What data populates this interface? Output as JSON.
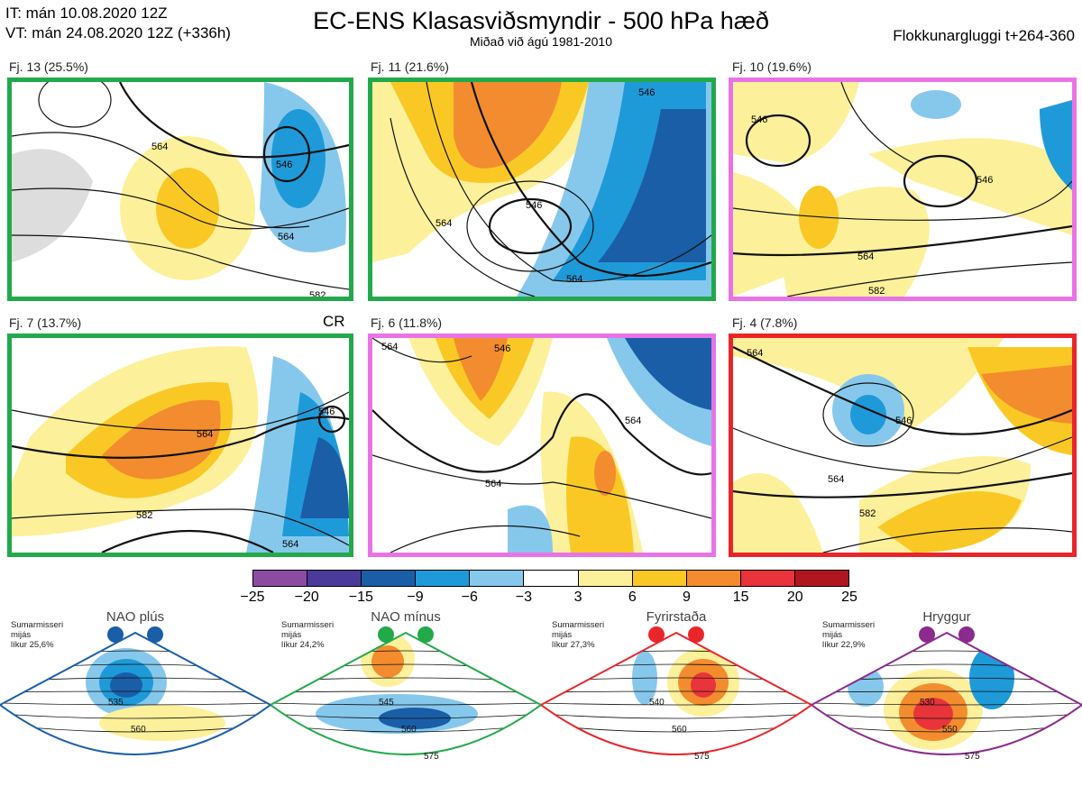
{
  "header": {
    "it": "IT: mán 10.08.2020 12Z",
    "vt": "VT: mán 24.08.2020 12Z  (+336h)",
    "title": "EC-ENS Klasasviðsmyndir - 500 hPa hæð",
    "subtitle": "Miðað við ágú 1981-2010",
    "window": "Flokkunargluggi t+264-360"
  },
  "panels": [
    {
      "label": "Fj. 13 (25.5%)",
      "border": "#22a94a",
      "contours": [
        "546",
        "564",
        "564",
        "582"
      ],
      "extra": ""
    },
    {
      "label": "Fj. 11 (21.6%)",
      "border": "#22a94a",
      "contours": [
        "546",
        "546",
        "564",
        "564"
      ],
      "extra": ""
    },
    {
      "label": "Fj. 10 (19.6%)",
      "border": "#e873e6",
      "contours": [
        "546",
        "546",
        "564",
        "582"
      ],
      "extra": ""
    },
    {
      "label": "Fj. 7 (13.7%)",
      "border": "#22a94a",
      "contours": [
        "546",
        "564",
        "582",
        "564"
      ],
      "extra": "CR"
    },
    {
      "label": "Fj. 6 (11.8%)",
      "border": "#e873e6",
      "contours": [
        "564",
        "546",
        "564",
        "564"
      ],
      "extra": ""
    },
    {
      "label": "Fj. 4 (7.8%)",
      "border": "#e8262a",
      "contours": [
        "564",
        "546",
        "564",
        "582"
      ],
      "extra": ""
    }
  ],
  "colorbar": {
    "colors": [
      "#8b4ba3",
      "#4a3b9a",
      "#1a5ea8",
      "#1f9ad9",
      "#86c8ec",
      "#ffffff",
      "#fdf09a",
      "#f9c825",
      "#f28c2e",
      "#e8343a",
      "#b01620"
    ],
    "ticks": [
      "−25",
      "−20",
      "−15",
      "−9",
      "−6",
      "−3",
      "3",
      "6",
      "9",
      "15",
      "20",
      "25"
    ]
  },
  "regimes": [
    {
      "name": "NAO plús",
      "note": [
        "Sumarmisseri",
        "mijás",
        "líkur 25,6%"
      ],
      "color": "#1a5ea8",
      "labels": [
        "535",
        "560"
      ]
    },
    {
      "name": "NAO mínus",
      "note": [
        "Sumarmisseri",
        "mijás",
        "líkur 24,2%"
      ],
      "color": "#22a94a",
      "labels": [
        "545",
        "560",
        "575"
      ]
    },
    {
      "name": "Fyrirstaða",
      "note": [
        "Sumarmisseri",
        "mijás",
        "líkur 27,3%"
      ],
      "color": "#e8262a",
      "labels": [
        "540",
        "560",
        "575"
      ]
    },
    {
      "name": "Hryggur",
      "note": [
        "Sumarmisseri",
        "mijás",
        "líkur 22,9%"
      ],
      "color": "#8b2a8f",
      "labels": [
        "530",
        "550",
        "575"
      ]
    }
  ]
}
